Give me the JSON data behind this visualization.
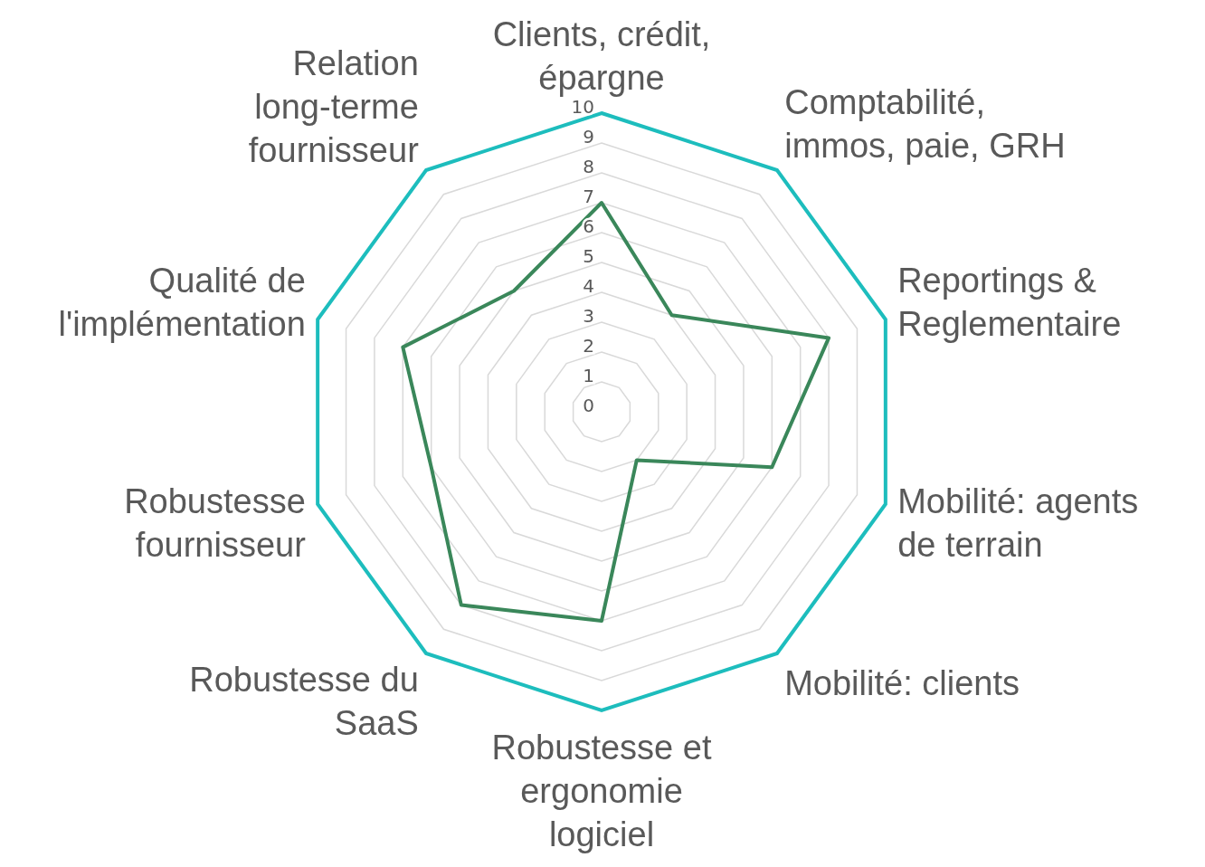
{
  "chart_data": {
    "type": "radar",
    "categories": [
      "Clients, crédit, épargne",
      "Comptabilité, immos, paie, GRH",
      "Reportings & Reglementaire",
      "Mobilité: agents de terrain",
      "Mobilité: clients",
      "Robustesse et ergonomie logiciel",
      "Robustesse du SaaS",
      "Robustesse fournisseur",
      "Qualité de l'implémentation",
      "Relation long-terme fournisseur"
    ],
    "series": [
      {
        "color": "#3a875a",
        "values": [
          7,
          4,
          8,
          6,
          2,
          7,
          8,
          6,
          7,
          5
        ]
      }
    ],
    "ylim": [
      0,
      10
    ],
    "yticks": [
      0,
      1,
      2,
      3,
      4,
      5,
      6,
      7,
      8,
      9,
      10
    ],
    "grid": true,
    "legend": false,
    "marker": "none"
  }
}
